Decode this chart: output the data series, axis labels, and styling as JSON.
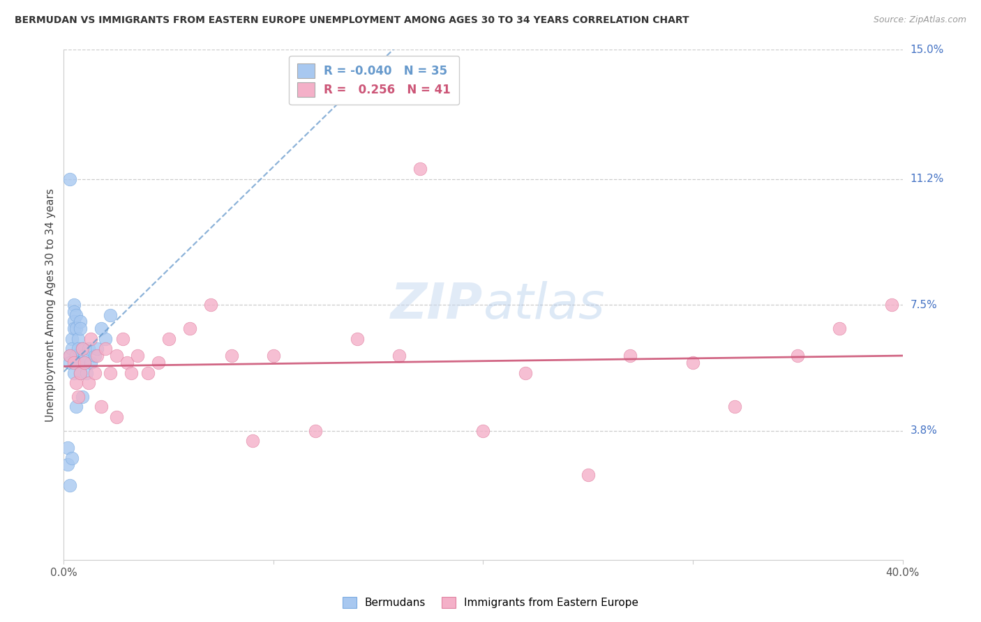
{
  "title": "BERMUDAN VS IMMIGRANTS FROM EASTERN EUROPE UNEMPLOYMENT AMONG AGES 30 TO 34 YEARS CORRELATION CHART",
  "source": "Source: ZipAtlas.com",
  "ylabel": "Unemployment Among Ages 30 to 34 years",
  "xlim": [
    0.0,
    0.4
  ],
  "ylim": [
    0.0,
    0.15
  ],
  "xticks": [
    0.0,
    0.1,
    0.2,
    0.3,
    0.4
  ],
  "xtick_labels": [
    "0.0%",
    "",
    "",
    "",
    "40.0%"
  ],
  "ytick_vals_right": [
    0.15,
    0.112,
    0.075,
    0.038,
    0.0
  ],
  "ytick_labels_right": [
    "15.0%",
    "11.2%",
    "7.5%",
    "3.8%",
    ""
  ],
  "blue_color": "#a8c8f0",
  "blue_edge_color": "#7aaae0",
  "pink_color": "#f4b0c8",
  "pink_edge_color": "#e080a0",
  "blue_line_color": "#6699cc",
  "pink_line_color": "#cc5577",
  "legend_blue_r": "-0.040",
  "legend_blue_n": "35",
  "legend_pink_r": "0.256",
  "legend_pink_n": "41",
  "watermark": "ZIPatlas",
  "bermuda_x": [
    0.002,
    0.002,
    0.003,
    0.003,
    0.003,
    0.004,
    0.004,
    0.004,
    0.005,
    0.005,
    0.005,
    0.005,
    0.005,
    0.006,
    0.006,
    0.006,
    0.006,
    0.007,
    0.007,
    0.007,
    0.008,
    0.008,
    0.008,
    0.009,
    0.009,
    0.01,
    0.01,
    0.011,
    0.012,
    0.013,
    0.015,
    0.016,
    0.018,
    0.02,
    0.022
  ],
  "bermuda_y": [
    0.033,
    0.028,
    0.06,
    0.058,
    0.022,
    0.065,
    0.062,
    0.03,
    0.075,
    0.073,
    0.07,
    0.068,
    0.055,
    0.072,
    0.068,
    0.06,
    0.045,
    0.065,
    0.062,
    0.058,
    0.07,
    0.068,
    0.055,
    0.062,
    0.048,
    0.06,
    0.058,
    0.055,
    0.062,
    0.058,
    0.06,
    0.062,
    0.068,
    0.065,
    0.072
  ],
  "bermuda_x_outlier": [
    0.003
  ],
  "bermuda_y_outlier": [
    0.112
  ],
  "eastern_x": [
    0.003,
    0.005,
    0.006,
    0.007,
    0.008,
    0.009,
    0.01,
    0.012,
    0.013,
    0.015,
    0.016,
    0.018,
    0.02,
    0.022,
    0.025,
    0.025,
    0.028,
    0.03,
    0.032,
    0.035,
    0.04,
    0.045,
    0.05,
    0.06,
    0.07,
    0.08,
    0.09,
    0.1,
    0.12,
    0.14,
    0.16,
    0.17,
    0.2,
    0.22,
    0.25,
    0.27,
    0.3,
    0.32,
    0.35,
    0.37,
    0.395
  ],
  "eastern_y": [
    0.06,
    0.058,
    0.052,
    0.048,
    0.055,
    0.062,
    0.058,
    0.052,
    0.065,
    0.055,
    0.06,
    0.045,
    0.062,
    0.055,
    0.06,
    0.042,
    0.065,
    0.058,
    0.055,
    0.06,
    0.055,
    0.058,
    0.065,
    0.068,
    0.075,
    0.06,
    0.035,
    0.06,
    0.038,
    0.065,
    0.06,
    0.115,
    0.038,
    0.055,
    0.025,
    0.06,
    0.058,
    0.045,
    0.06,
    0.068,
    0.075
  ]
}
